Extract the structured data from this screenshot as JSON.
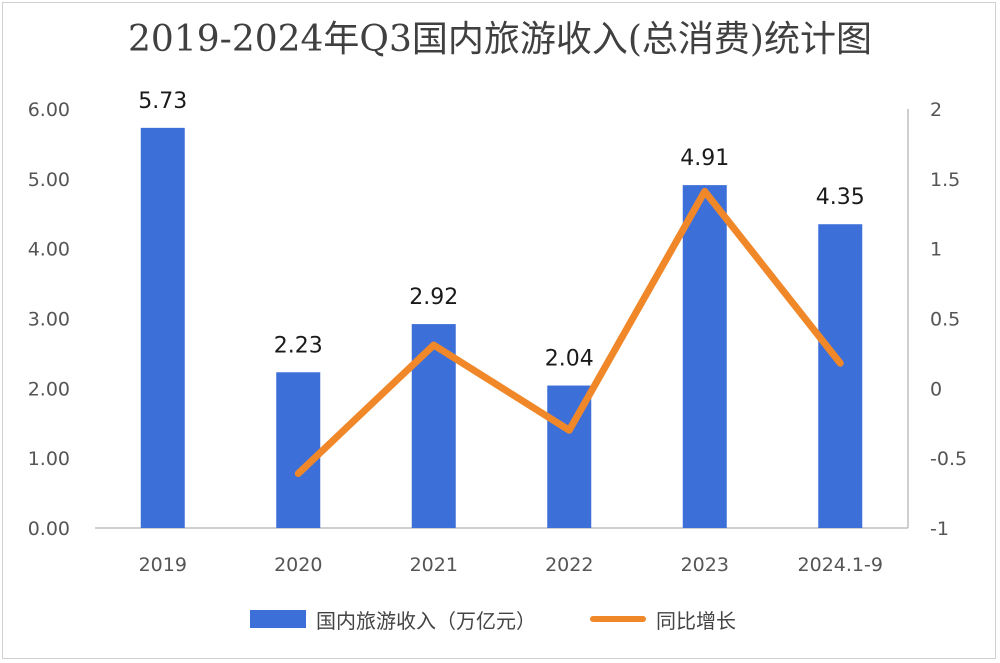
{
  "title": "2019-2024年Q3国内旅游收入(总消费)统计图",
  "colors": {
    "bar": "#3d6fd9",
    "line": "#f0882a",
    "axis": "#bfbfbf"
  },
  "chart_data": {
    "type": "bar",
    "categories": [
      "2019",
      "2020",
      "2021",
      "2022",
      "2023",
      "2024.1-9"
    ],
    "series": [
      {
        "name": "国内旅游收入（万亿元）",
        "type": "bar",
        "axis": "left",
        "values": [
          5.73,
          2.23,
          2.92,
          2.04,
          4.91,
          4.35
        ],
        "labels": [
          "5.73",
          "2.23",
          "2.92",
          "2.04",
          "4.91",
          "4.35"
        ]
      },
      {
        "name": "同比增长",
        "type": "line",
        "axis": "right",
        "values": [
          null,
          -0.61,
          0.31,
          -0.3,
          1.41,
          0.18
        ]
      }
    ],
    "left_axis": {
      "ylim": [
        0,
        6
      ],
      "ticks": [
        "0.00",
        "1.00",
        "2.00",
        "3.00",
        "4.00",
        "5.00",
        "6.00"
      ]
    },
    "right_axis": {
      "ylim": [
        -1,
        2
      ],
      "ticks": [
        "-1",
        "-0.5",
        "0",
        "0.5",
        "1",
        "1.5",
        "2"
      ]
    },
    "grid": false,
    "legend_position": "bottom"
  }
}
